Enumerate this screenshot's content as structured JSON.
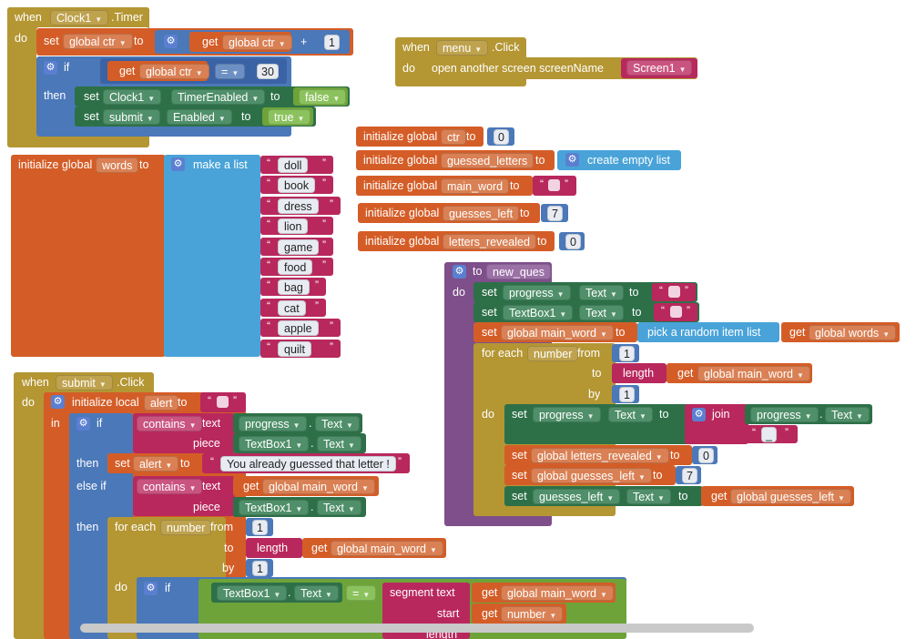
{
  "clock_event": {
    "when": "when",
    "component": "Clock1",
    "event": ".Timer",
    "do": "do",
    "set": "set",
    "var_ctr": "global ctr",
    "to": "to",
    "get": "get",
    "get_ctr": "global ctr",
    "plus": "+",
    "one": "1",
    "if": "if",
    "eq": "=",
    "thirty": "30",
    "then": "then",
    "component2": "Clock1",
    "prop_timer": "TimerEnabled",
    "false_val": "false",
    "component3": "submit",
    "prop_enabled": "Enabled",
    "true_val": "true"
  },
  "menu_event": {
    "when": "when",
    "component": "menu",
    "event": ".Click",
    "do": "do",
    "action": "open another screen  screenName",
    "screen": "Screen1"
  },
  "globals": [
    {
      "prefix": "initialize global",
      "name": "ctr",
      "to": "to",
      "value": "0"
    },
    {
      "prefix": "initialize global",
      "name": "guessed_letters",
      "to": "to",
      "value": "create empty list"
    },
    {
      "prefix": "initialize global",
      "name": "main_word",
      "to": "to",
      "value": ""
    },
    {
      "prefix": "initialize global",
      "name": "guesses_left",
      "to": "to",
      "value": "7"
    },
    {
      "prefix": "initialize global",
      "name": "letters_revealed",
      "to": "to",
      "value": "0"
    }
  ],
  "words_global": {
    "prefix": "initialize global",
    "name": "words",
    "to": "to",
    "make_list": "make a list",
    "items": [
      "doll",
      "book",
      "dress",
      "lion",
      "game",
      "food",
      "bag",
      "cat",
      "apple",
      "quilt"
    ]
  },
  "new_ques": {
    "to": "to",
    "name": "new_ques",
    "do": "do",
    "set": "set",
    "progress": "progress",
    "text": "Text",
    "textbox": "TextBox1",
    "main_word": "global main_word",
    "pick": "pick a random item  list",
    "get": "get",
    "words": "global words",
    "for_each": "for each",
    "number": "number",
    "from": "from",
    "one": "1",
    "to_label": "to",
    "length": "length",
    "get_main_word": "global main_word",
    "by": "by",
    "join": "join",
    "underscore": "_",
    "letters_revealed": "global letters_revealed",
    "zero": "0",
    "guesses_left": "global guesses_left",
    "seven": "7",
    "guesses_left_comp": "guesses_left",
    "get_guesses_left": "global guesses_left"
  },
  "submit_event": {
    "when": "when",
    "component": "submit",
    "event": ".Click",
    "do": "do",
    "init_local": "initialize local",
    "alert": "alert",
    "to": "to",
    "in": "in",
    "if": "if",
    "contains": "contains",
    "text": "text",
    "progress": "progress",
    "text_prop": "Text",
    "piece": "piece",
    "textbox": "TextBox1",
    "then": "then",
    "set": "set",
    "message": "You already guessed that letter !",
    "else_if": "else if",
    "get": "get",
    "main_word": "global main_word",
    "for_each": "for each",
    "number": "number",
    "from": "from",
    "one": "1",
    "length": "length",
    "by": "by",
    "do_label": "do",
    "eq": "=",
    "segment": "segment  text",
    "start": "start",
    "get_number": "number",
    "length_label": "length"
  }
}
